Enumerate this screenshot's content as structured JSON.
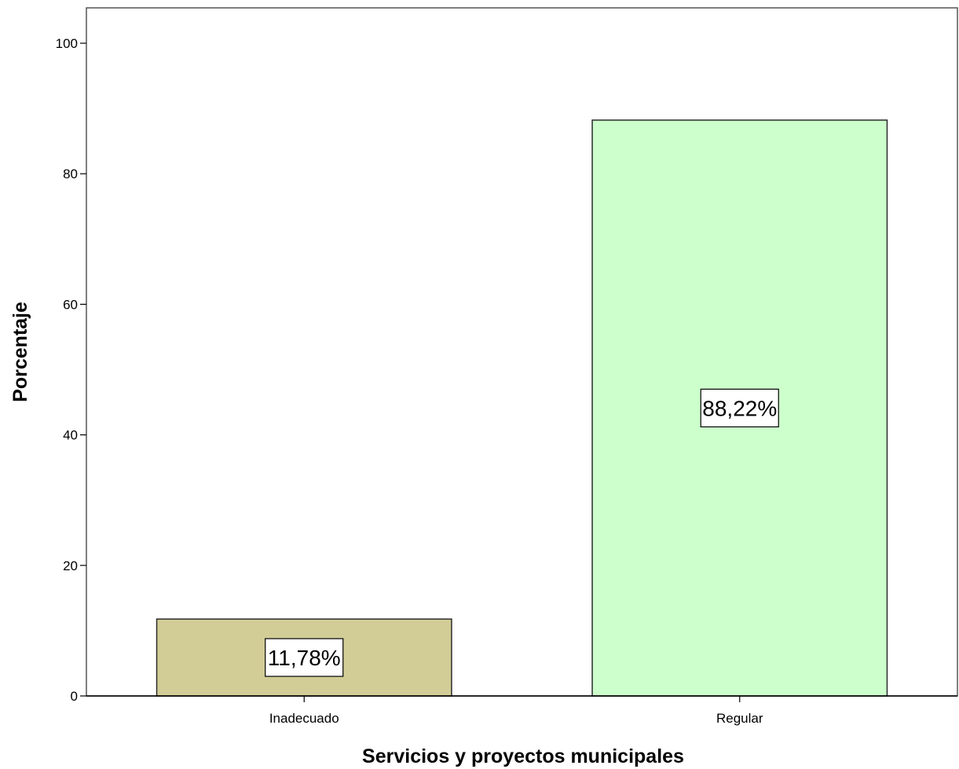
{
  "chart_data": {
    "type": "bar",
    "title": "",
    "xlabel": "Servicios y proyectos municipales",
    "ylabel": "Porcentaje",
    "categories": [
      "Inadecuado",
      "Regular"
    ],
    "values": [
      11.78,
      88.22
    ],
    "data_labels": [
      "11,78%",
      "88,22%"
    ],
    "colors": [
      "#d2cc96",
      "#ccffcc"
    ],
    "ylim": [
      0,
      105
    ],
    "yticks": [
      0,
      20,
      40,
      60,
      80,
      100
    ],
    "grid": false,
    "legend": "none"
  }
}
